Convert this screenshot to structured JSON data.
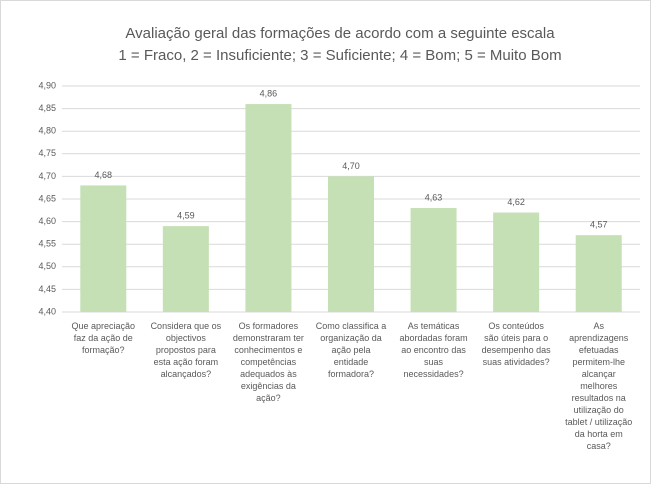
{
  "chart_data": {
    "type": "bar",
    "title": "Avaliação geral das formações de acordo com a seguinte escala",
    "subtitle": "1 = Fraco, 2 = Insuficiente; 3 = Suficiente; 4 = Bom; 5 = Muito Bom",
    "categories": [
      "Que apreciação faz da ação de formação?",
      "Considera que os objectivos propostos para esta ação foram alcançados?",
      "Os formadores demonstraram ter conhecimentos e competências adequados às exigências da ação?",
      "Como classifica a organização da ação pela entidade formadora?",
      "As temáticas abordadas foram ao encontro das suas necessidades?",
      "Os conteúdos são úteis para o desempenho das suas atividades?",
      "As aprendizagens efetuadas permitem-lhe alcançar melhores resultados na utilização do tablet / utilização da horta em casa?"
    ],
    "values": [
      4.68,
      4.59,
      4.86,
      4.7,
      4.63,
      4.62,
      4.57
    ],
    "value_labels": [
      "4,68",
      "4,59",
      "4,86",
      "4,70",
      "4,63",
      "4,62",
      "4,57"
    ],
    "color": "#c5e0b4",
    "ylim": [
      4.4,
      4.9
    ],
    "yticks": [
      {
        "value": 4.4,
        "label": "4,40"
      },
      {
        "value": 4.45,
        "label": "4,45"
      },
      {
        "value": 4.5,
        "label": "4,50"
      },
      {
        "value": 4.55,
        "label": "4,55"
      },
      {
        "value": 4.6,
        "label": "4,60"
      },
      {
        "value": 4.65,
        "label": "4,65"
      },
      {
        "value": 4.7,
        "label": "4,70"
      },
      {
        "value": 4.75,
        "label": "4,75"
      },
      {
        "value": 4.8,
        "label": "4,80"
      },
      {
        "value": 4.85,
        "label": "4,85"
      },
      {
        "value": 4.9,
        "label": "4,90"
      }
    ],
    "grid": true
  }
}
